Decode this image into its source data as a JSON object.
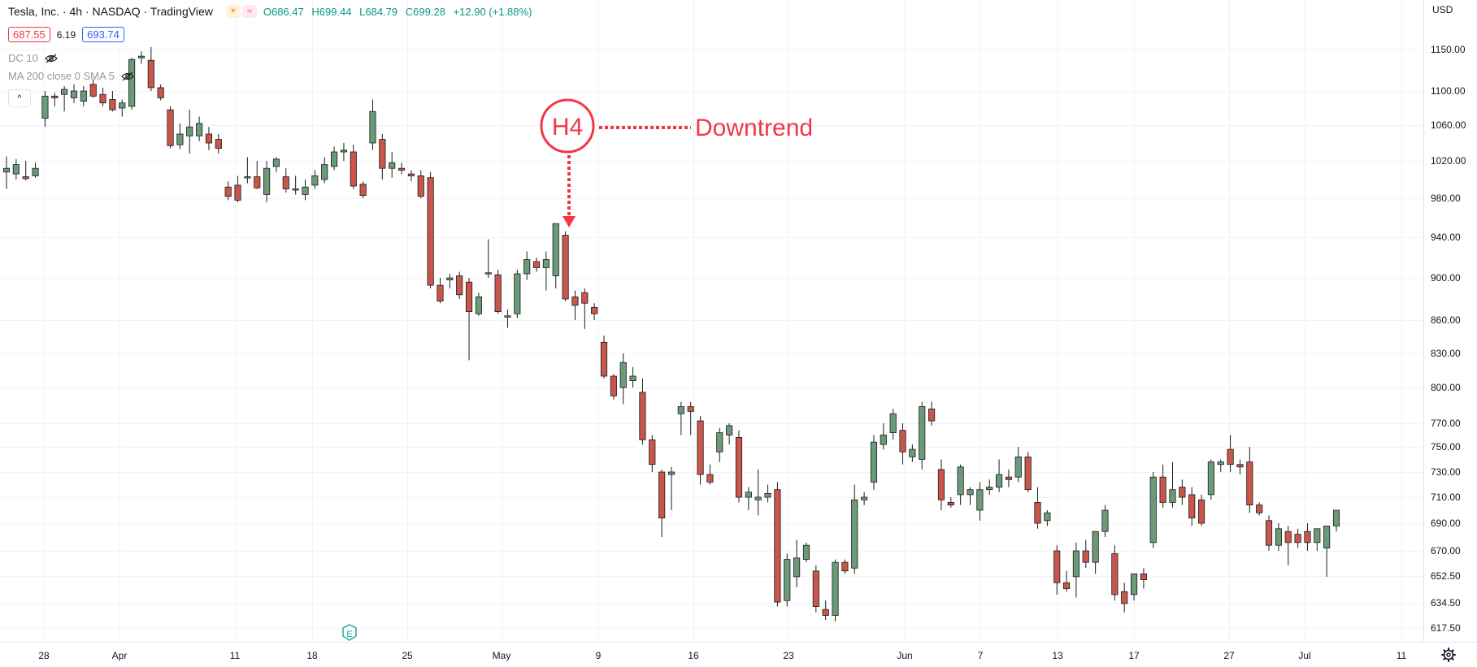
{
  "header": {
    "symbol_line": "Tesla, Inc. · 4h · NASDAQ · TradingView",
    "open_label": "O",
    "open": "686.47",
    "high_label": "H",
    "high": "699.44",
    "low_label": "L",
    "low": "684.79",
    "close_label": "C",
    "close": "699.28",
    "change": "+12.90 (+1.88%)",
    "bid": "687.55",
    "spread": "6.19",
    "ask": "693.74",
    "indicator_1": "DC 10",
    "indicator_2": "MA 200 close 0 SMA 5",
    "collapse_glyph": "^"
  },
  "price_axis": {
    "currency": "USD",
    "tick_labels": [
      "1150.00",
      "1100.00",
      "1060.00",
      "1020.00",
      "980.00",
      "940.00",
      "900.00",
      "860.00",
      "830.00",
      "800.00",
      "770.00",
      "750.00",
      "730.00",
      "710.00",
      "690.00",
      "670.00",
      "652.50",
      "634.50",
      "617.50"
    ]
  },
  "time_axis": {
    "tick_labels": [
      "28",
      "Apr",
      "11",
      "18",
      "25",
      "May",
      "9",
      "16",
      "23",
      "Jun",
      "7",
      "13",
      "17",
      "27",
      "Jul",
      "11"
    ]
  },
  "annotation": {
    "badge_text": "H4",
    "label": "Downtrend"
  },
  "earnings_marker": "E",
  "colors": {
    "up": "#6a9a78",
    "down": "#c9564a",
    "annotation": "#f23645",
    "grid": "#f0f3fa"
  },
  "icons": {
    "settings": "gear-icon",
    "visibility": "eye-slash-icon",
    "collapse": "chevron-up-icon"
  },
  "chart_data": {
    "type": "candlestick",
    "title": "Tesla, Inc. · 4h · NASDAQ",
    "x_tick_labels": [
      "28",
      "Apr",
      "11",
      "18",
      "25",
      "May",
      "9",
      "16",
      "23",
      "Jun",
      "7",
      "13",
      "17",
      "27",
      "Jul",
      "11"
    ],
    "y_tick_labels": [
      "1150.00",
      "1100.00",
      "1060.00",
      "1020.00",
      "980.00",
      "940.00",
      "900.00",
      "860.00",
      "830.00",
      "800.00",
      "770.00",
      "750.00",
      "730.00",
      "710.00",
      "690.00",
      "670.00",
      "652.50",
      "634.50",
      "617.50"
    ],
    "ylim": [
      610,
      1170
    ],
    "candles": [
      {
        "o": 1008,
        "h": 1025,
        "l": 990,
        "c": 1012
      },
      {
        "o": 1006,
        "h": 1022,
        "l": 1000,
        "c": 1016
      },
      {
        "o": 1003,
        "h": 1020,
        "l": 999,
        "c": 1001
      },
      {
        "o": 1004,
        "h": 1018,
        "l": 1002,
        "c": 1012
      },
      {
        "o": 1068,
        "h": 1100,
        "l": 1058,
        "c": 1094
      },
      {
        "o": 1094,
        "h": 1098,
        "l": 1082,
        "c": 1092
      },
      {
        "o": 1096,
        "h": 1106,
        "l": 1076,
        "c": 1102
      },
      {
        "o": 1092,
        "h": 1108,
        "l": 1086,
        "c": 1100
      },
      {
        "o": 1088,
        "h": 1106,
        "l": 1082,
        "c": 1100
      },
      {
        "o": 1108,
        "h": 1114,
        "l": 1092,
        "c": 1094
      },
      {
        "o": 1096,
        "h": 1104,
        "l": 1082,
        "c": 1086
      },
      {
        "o": 1090,
        "h": 1100,
        "l": 1076,
        "c": 1078
      },
      {
        "o": 1080,
        "h": 1090,
        "l": 1070,
        "c": 1086
      },
      {
        "o": 1082,
        "h": 1140,
        "l": 1078,
        "c": 1138
      },
      {
        "o": 1140,
        "h": 1148,
        "l": 1133,
        "c": 1142
      },
      {
        "o": 1137,
        "h": 1153,
        "l": 1100,
        "c": 1104
      },
      {
        "o": 1104,
        "h": 1108,
        "l": 1089,
        "c": 1092
      },
      {
        "o": 1078,
        "h": 1082,
        "l": 1034,
        "c": 1037
      },
      {
        "o": 1038,
        "h": 1062,
        "l": 1033,
        "c": 1050
      },
      {
        "o": 1048,
        "h": 1078,
        "l": 1028,
        "c": 1058
      },
      {
        "o": 1048,
        "h": 1070,
        "l": 1042,
        "c": 1062
      },
      {
        "o": 1050,
        "h": 1058,
        "l": 1032,
        "c": 1040
      },
      {
        "o": 1044,
        "h": 1050,
        "l": 1028,
        "c": 1034
      },
      {
        "o": 992,
        "h": 998,
        "l": 978,
        "c": 982
      },
      {
        "o": 994,
        "h": 1004,
        "l": 976,
        "c": 978
      },
      {
        "o": 1002,
        "h": 1024,
        "l": 996,
        "c": 1003
      },
      {
        "o": 1003,
        "h": 1020,
        "l": 990,
        "c": 991
      },
      {
        "o": 984,
        "h": 1020,
        "l": 976,
        "c": 1012
      },
      {
        "o": 1014,
        "h": 1024,
        "l": 1008,
        "c": 1022
      },
      {
        "o": 1003,
        "h": 1012,
        "l": 986,
        "c": 990
      },
      {
        "o": 990,
        "h": 1004,
        "l": 984,
        "c": 990
      },
      {
        "o": 984,
        "h": 1000,
        "l": 978,
        "c": 992
      },
      {
        "o": 994,
        "h": 1010,
        "l": 990,
        "c": 1004
      },
      {
        "o": 1000,
        "h": 1024,
        "l": 996,
        "c": 1016
      },
      {
        "o": 1014,
        "h": 1036,
        "l": 1010,
        "c": 1030
      },
      {
        "o": 1030,
        "h": 1040,
        "l": 1020,
        "c": 1032
      },
      {
        "o": 1030,
        "h": 1038,
        "l": 990,
        "c": 993
      },
      {
        "o": 995,
        "h": 998,
        "l": 980,
        "c": 983
      },
      {
        "o": 1040,
        "h": 1090,
        "l": 1032,
        "c": 1076
      },
      {
        "o": 1044,
        "h": 1050,
        "l": 1000,
        "c": 1012
      },
      {
        "o": 1012,
        "h": 1030,
        "l": 1002,
        "c": 1018
      },
      {
        "o": 1012,
        "h": 1018,
        "l": 1006,
        "c": 1010
      },
      {
        "o": 1006,
        "h": 1010,
        "l": 998,
        "c": 1004
      },
      {
        "o": 1004,
        "h": 1010,
        "l": 980,
        "c": 982
      },
      {
        "o": 1002,
        "h": 1008,
        "l": 890,
        "c": 893
      },
      {
        "o": 893,
        "h": 900,
        "l": 876,
        "c": 878
      },
      {
        "o": 898,
        "h": 904,
        "l": 890,
        "c": 900
      },
      {
        "o": 902,
        "h": 906,
        "l": 880,
        "c": 884
      },
      {
        "o": 896,
        "h": 900,
        "l": 824,
        "c": 868
      },
      {
        "o": 866,
        "h": 886,
        "l": 864,
        "c": 882
      },
      {
        "o": 904,
        "h": 938,
        "l": 900,
        "c": 905
      },
      {
        "o": 903,
        "h": 908,
        "l": 866,
        "c": 868
      },
      {
        "o": 863,
        "h": 870,
        "l": 853,
        "c": 864
      },
      {
        "o": 866,
        "h": 908,
        "l": 862,
        "c": 904
      },
      {
        "o": 904,
        "h": 926,
        "l": 898,
        "c": 918
      },
      {
        "o": 916,
        "h": 920,
        "l": 906,
        "c": 910
      },
      {
        "o": 910,
        "h": 926,
        "l": 888,
        "c": 918
      },
      {
        "o": 902,
        "h": 952,
        "l": 890,
        "c": 954
      },
      {
        "o": 942,
        "h": 946,
        "l": 878,
        "c": 880
      },
      {
        "o": 882,
        "h": 888,
        "l": 860,
        "c": 874
      },
      {
        "o": 886,
        "h": 890,
        "l": 852,
        "c": 876
      },
      {
        "o": 872,
        "h": 876,
        "l": 860,
        "c": 866
      },
      {
        "o": 840,
        "h": 846,
        "l": 808,
        "c": 810
      },
      {
        "o": 810,
        "h": 812,
        "l": 790,
        "c": 793
      },
      {
        "o": 800,
        "h": 830,
        "l": 786,
        "c": 822
      },
      {
        "o": 806,
        "h": 818,
        "l": 800,
        "c": 810
      },
      {
        "o": 796,
        "h": 808,
        "l": 752,
        "c": 756
      },
      {
        "o": 756,
        "h": 760,
        "l": 730,
        "c": 736
      },
      {
        "o": 730,
        "h": 732,
        "l": 680,
        "c": 694
      },
      {
        "o": 728,
        "h": 734,
        "l": 700,
        "c": 730
      },
      {
        "o": 778,
        "h": 788,
        "l": 760,
        "c": 784
      },
      {
        "o": 784,
        "h": 788,
        "l": 760,
        "c": 780
      },
      {
        "o": 772,
        "h": 776,
        "l": 720,
        "c": 728
      },
      {
        "o": 728,
        "h": 736,
        "l": 720,
        "c": 722
      },
      {
        "o": 746,
        "h": 766,
        "l": 738,
        "c": 762
      },
      {
        "o": 760,
        "h": 770,
        "l": 752,
        "c": 768
      },
      {
        "o": 758,
        "h": 764,
        "l": 706,
        "c": 710
      },
      {
        "o": 710,
        "h": 718,
        "l": 700,
        "c": 714
      },
      {
        "o": 708,
        "h": 732,
        "l": 696,
        "c": 710
      },
      {
        "o": 710,
        "h": 720,
        "l": 706,
        "c": 713
      },
      {
        "o": 716,
        "h": 722,
        "l": 632,
        "c": 635
      },
      {
        "o": 636,
        "h": 668,
        "l": 632,
        "c": 664
      },
      {
        "o": 652,
        "h": 678,
        "l": 645,
        "c": 665
      },
      {
        "o": 664,
        "h": 676,
        "l": 662,
        "c": 674
      },
      {
        "o": 656,
        "h": 660,
        "l": 628,
        "c": 632
      },
      {
        "o": 630,
        "h": 636,
        "l": 623,
        "c": 626
      },
      {
        "o": 626,
        "h": 664,
        "l": 622,
        "c": 662
      },
      {
        "o": 662,
        "h": 664,
        "l": 654,
        "c": 656
      },
      {
        "o": 658,
        "h": 720,
        "l": 654,
        "c": 708
      },
      {
        "o": 708,
        "h": 714,
        "l": 704,
        "c": 710
      },
      {
        "o": 722,
        "h": 760,
        "l": 716,
        "c": 754
      },
      {
        "o": 752,
        "h": 770,
        "l": 748,
        "c": 760
      },
      {
        "o": 762,
        "h": 782,
        "l": 756,
        "c": 778
      },
      {
        "o": 764,
        "h": 770,
        "l": 736,
        "c": 746
      },
      {
        "o": 742,
        "h": 752,
        "l": 738,
        "c": 748
      },
      {
        "o": 740,
        "h": 788,
        "l": 732,
        "c": 784
      },
      {
        "o": 782,
        "h": 788,
        "l": 768,
        "c": 772
      },
      {
        "o": 732,
        "h": 740,
        "l": 700,
        "c": 708
      },
      {
        "o": 706,
        "h": 710,
        "l": 702,
        "c": 704
      },
      {
        "o": 712,
        "h": 736,
        "l": 704,
        "c": 734
      },
      {
        "o": 712,
        "h": 718,
        "l": 704,
        "c": 716
      },
      {
        "o": 700,
        "h": 722,
        "l": 692,
        "c": 716
      },
      {
        "o": 716,
        "h": 724,
        "l": 712,
        "c": 718
      },
      {
        "o": 718,
        "h": 740,
        "l": 714,
        "c": 728
      },
      {
        "o": 726,
        "h": 732,
        "l": 718,
        "c": 724
      },
      {
        "o": 726,
        "h": 750,
        "l": 722,
        "c": 742
      },
      {
        "o": 742,
        "h": 746,
        "l": 714,
        "c": 716
      },
      {
        "o": 706,
        "h": 718,
        "l": 686,
        "c": 690
      },
      {
        "o": 692,
        "h": 700,
        "l": 688,
        "c": 698
      },
      {
        "o": 670,
        "h": 674,
        "l": 640,
        "c": 648
      },
      {
        "o": 648,
        "h": 656,
        "l": 642,
        "c": 644
      },
      {
        "o": 652,
        "h": 676,
        "l": 638,
        "c": 670
      },
      {
        "o": 670,
        "h": 678,
        "l": 658,
        "c": 662
      },
      {
        "o": 662,
        "h": 684,
        "l": 654,
        "c": 684
      },
      {
        "o": 684,
        "h": 704,
        "l": 680,
        "c": 700
      },
      {
        "o": 668,
        "h": 674,
        "l": 636,
        "c": 640
      },
      {
        "o": 642,
        "h": 648,
        "l": 628,
        "c": 634
      },
      {
        "o": 640,
        "h": 654,
        "l": 636,
        "c": 654
      },
      {
        "o": 654,
        "h": 658,
        "l": 644,
        "c": 650
      },
      {
        "o": 676,
        "h": 730,
        "l": 672,
        "c": 726
      },
      {
        "o": 726,
        "h": 736,
        "l": 702,
        "c": 706
      },
      {
        "o": 706,
        "h": 738,
        "l": 702,
        "c": 716
      },
      {
        "o": 718,
        "h": 724,
        "l": 704,
        "c": 710
      },
      {
        "o": 712,
        "h": 718,
        "l": 688,
        "c": 694
      },
      {
        "o": 708,
        "h": 712,
        "l": 688,
        "c": 690
      },
      {
        "o": 712,
        "h": 740,
        "l": 708,
        "c": 738
      },
      {
        "o": 736,
        "h": 740,
        "l": 730,
        "c": 738
      },
      {
        "o": 748,
        "h": 760,
        "l": 730,
        "c": 736
      },
      {
        "o": 736,
        "h": 740,
        "l": 728,
        "c": 734
      },
      {
        "o": 738,
        "h": 750,
        "l": 698,
        "c": 704
      },
      {
        "o": 704,
        "h": 706,
        "l": 696,
        "c": 698
      },
      {
        "o": 692,
        "h": 696,
        "l": 670,
        "c": 674
      },
      {
        "o": 674,
        "h": 690,
        "l": 670,
        "c": 686
      },
      {
        "o": 684,
        "h": 688,
        "l": 660,
        "c": 676
      },
      {
        "o": 682,
        "h": 686,
        "l": 672,
        "c": 676
      },
      {
        "o": 684,
        "h": 690,
        "l": 670,
        "c": 676
      },
      {
        "o": 676,
        "h": 686,
        "l": 670,
        "c": 686
      },
      {
        "o": 672,
        "h": 688,
        "l": 652,
        "c": 688
      },
      {
        "o": 688,
        "h": 700,
        "l": 684,
        "c": 700
      }
    ]
  }
}
